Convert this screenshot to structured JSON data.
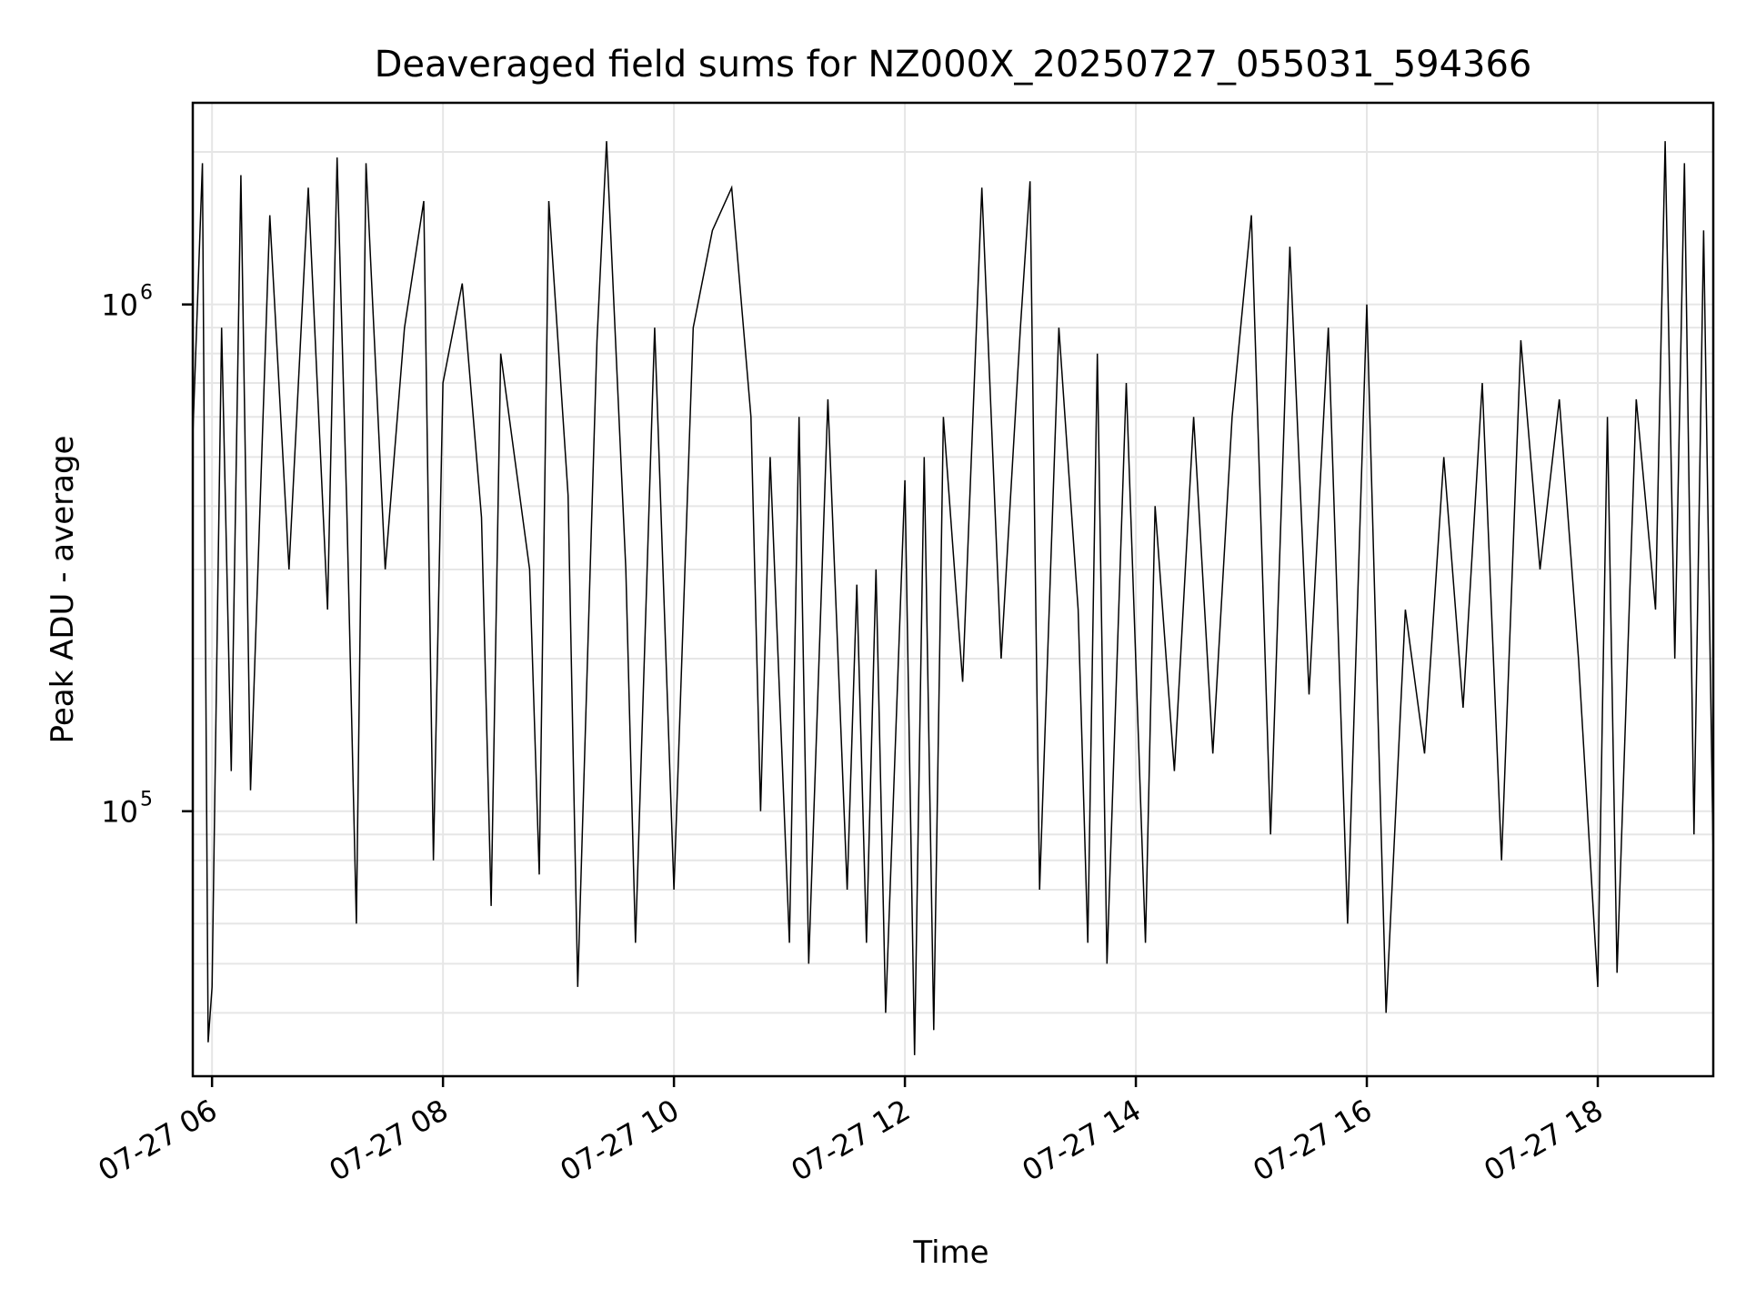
{
  "chart_data": {
    "type": "line",
    "title": "Deaveraged field sums for NZ000X_20250727_055031_594366",
    "xlabel": "Time",
    "ylabel": "Peak ADU - average",
    "x_ticks": [
      "07-27 06",
      "07-27 08",
      "07-27 10",
      "07-27 12",
      "07-27 14",
      "07-27 16",
      "07-27 18"
    ],
    "y_ticks": [
      {
        "value": 100000,
        "base": "10",
        "exp": "5"
      },
      {
        "value": 1000000,
        "base": "10",
        "exp": "6"
      }
    ],
    "y_scale": "log",
    "x_range": [
      "2025-07-27 05:50",
      "2025-07-27 19:00"
    ],
    "y_range": [
      30000,
      2500000
    ],
    "grid": true,
    "line_color": "#000000",
    "grid_color": "#e6e6e6",
    "series": [
      {
        "values": [
          [
            "2025-07-27 05:50",
            550000
          ],
          [
            "2025-07-27 05:55",
            1900000
          ],
          [
            "2025-07-27 05:58",
            35000
          ],
          [
            "2025-07-27 06:00",
            45000
          ],
          [
            "2025-07-27 06:05",
            900000
          ],
          [
            "2025-07-27 06:10",
            120000
          ],
          [
            "2025-07-27 06:15",
            1800000
          ],
          [
            "2025-07-27 06:20",
            110000
          ],
          [
            "2025-07-27 06:30",
            1500000
          ],
          [
            "2025-07-27 06:40",
            300000
          ],
          [
            "2025-07-27 06:50",
            1700000
          ],
          [
            "2025-07-27 07:00",
            250000
          ],
          [
            "2025-07-27 07:05",
            1950000
          ],
          [
            "2025-07-27 07:10",
            400000
          ],
          [
            "2025-07-27 07:15",
            60000
          ],
          [
            "2025-07-27 07:20",
            1900000
          ],
          [
            "2025-07-27 07:30",
            300000
          ],
          [
            "2025-07-27 07:40",
            900000
          ],
          [
            "2025-07-27 07:50",
            1600000
          ],
          [
            "2025-07-27 07:55",
            80000
          ],
          [
            "2025-07-27 08:00",
            700000
          ],
          [
            "2025-07-27 08:10",
            1100000
          ],
          [
            "2025-07-27 08:20",
            380000
          ],
          [
            "2025-07-27 08:25",
            65000
          ],
          [
            "2025-07-27 08:30",
            800000
          ],
          [
            "2025-07-27 08:45",
            300000
          ],
          [
            "2025-07-27 08:50",
            75000
          ],
          [
            "2025-07-27 08:55",
            1600000
          ],
          [
            "2025-07-27 09:05",
            420000
          ],
          [
            "2025-07-27 09:10",
            45000
          ],
          [
            "2025-07-27 09:20",
            850000
          ],
          [
            "2025-07-27 09:25",
            2100000
          ],
          [
            "2025-07-27 09:35",
            300000
          ],
          [
            "2025-07-27 09:40",
            55000
          ],
          [
            "2025-07-27 09:50",
            900000
          ],
          [
            "2025-07-27 10:00",
            70000
          ],
          [
            "2025-07-27 10:10",
            900000
          ],
          [
            "2025-07-27 10:20",
            1400000
          ],
          [
            "2025-07-27 10:30",
            1700000
          ],
          [
            "2025-07-27 10:40",
            600000
          ],
          [
            "2025-07-27 10:45",
            100000
          ],
          [
            "2025-07-27 10:50",
            500000
          ],
          [
            "2025-07-27 11:00",
            55000
          ],
          [
            "2025-07-27 11:05",
            600000
          ],
          [
            "2025-07-27 11:10",
            50000
          ],
          [
            "2025-07-27 11:20",
            650000
          ],
          [
            "2025-07-27 11:30",
            70000
          ],
          [
            "2025-07-27 11:35",
            280000
          ],
          [
            "2025-07-27 11:40",
            55000
          ],
          [
            "2025-07-27 11:45",
            300000
          ],
          [
            "2025-07-27 11:50",
            40000
          ],
          [
            "2025-07-27 12:00",
            450000
          ],
          [
            "2025-07-27 12:05",
            33000
          ],
          [
            "2025-07-27 12:10",
            500000
          ],
          [
            "2025-07-27 12:15",
            37000
          ],
          [
            "2025-07-27 12:20",
            600000
          ],
          [
            "2025-07-27 12:30",
            180000
          ],
          [
            "2025-07-27 12:40",
            1700000
          ],
          [
            "2025-07-27 12:50",
            200000
          ],
          [
            "2025-07-27 13:00",
            900000
          ],
          [
            "2025-07-27 13:05",
            1750000
          ],
          [
            "2025-07-27 13:10",
            70000
          ],
          [
            "2025-07-27 13:20",
            900000
          ],
          [
            "2025-07-27 13:30",
            250000
          ],
          [
            "2025-07-27 13:35",
            55000
          ],
          [
            "2025-07-27 13:40",
            800000
          ],
          [
            "2025-07-27 13:45",
            50000
          ],
          [
            "2025-07-27 13:55",
            700000
          ],
          [
            "2025-07-27 14:05",
            55000
          ],
          [
            "2025-07-27 14:10",
            400000
          ],
          [
            "2025-07-27 14:20",
            120000
          ],
          [
            "2025-07-27 14:30",
            600000
          ],
          [
            "2025-07-27 14:40",
            130000
          ],
          [
            "2025-07-27 14:50",
            600000
          ],
          [
            "2025-07-27 15:00",
            1500000
          ],
          [
            "2025-07-27 15:10",
            90000
          ],
          [
            "2025-07-27 15:20",
            1300000
          ],
          [
            "2025-07-27 15:30",
            170000
          ],
          [
            "2025-07-27 15:40",
            900000
          ],
          [
            "2025-07-27 15:50",
            60000
          ],
          [
            "2025-07-27 16:00",
            1000000
          ],
          [
            "2025-07-27 16:10",
            40000
          ],
          [
            "2025-07-27 16:20",
            250000
          ],
          [
            "2025-07-27 16:30",
            130000
          ],
          [
            "2025-07-27 16:40",
            500000
          ],
          [
            "2025-07-27 16:50",
            160000
          ],
          [
            "2025-07-27 17:00",
            700000
          ],
          [
            "2025-07-27 17:10",
            80000
          ],
          [
            "2025-07-27 17:20",
            850000
          ],
          [
            "2025-07-27 17:30",
            300000
          ],
          [
            "2025-07-27 17:40",
            650000
          ],
          [
            "2025-07-27 17:50",
            200000
          ],
          [
            "2025-07-27 18:00",
            45000
          ],
          [
            "2025-07-27 18:05",
            600000
          ],
          [
            "2025-07-27 18:10",
            48000
          ],
          [
            "2025-07-27 18:20",
            650000
          ],
          [
            "2025-07-27 18:30",
            250000
          ],
          [
            "2025-07-27 18:35",
            2100000
          ],
          [
            "2025-07-27 18:40",
            200000
          ],
          [
            "2025-07-27 18:45",
            1900000
          ],
          [
            "2025-07-27 18:50",
            90000
          ],
          [
            "2025-07-27 18:55",
            1400000
          ],
          [
            "2025-07-27 19:00",
            80000
          ]
        ]
      }
    ]
  }
}
